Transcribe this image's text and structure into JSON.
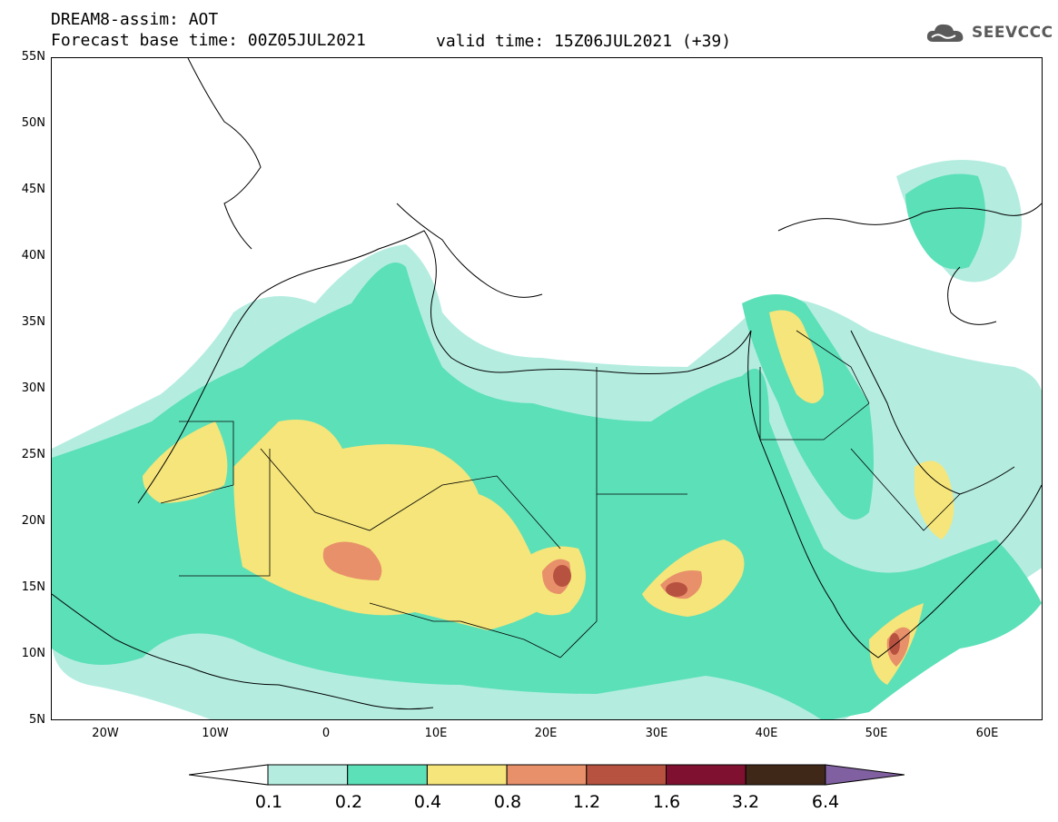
{
  "header": {
    "title": "DREAM8-assim: AOT",
    "base_time": "Forecast base time: 00Z05JUL2021",
    "valid_time": "valid time: 15Z06JUL2021 (+39)"
  },
  "logo": {
    "text": "SEEVCCC",
    "icon": "cloud-icon"
  },
  "map": {
    "lat_labels": [
      "55N",
      "50N",
      "45N",
      "40N",
      "35N",
      "30N",
      "25N",
      "20N",
      "15N",
      "10N",
      "5N"
    ],
    "lon_labels": [
      "20W",
      "10W",
      "0",
      "10E",
      "20E",
      "30E",
      "40E",
      "50E",
      "60E"
    ],
    "extent": {
      "lon": [
        -25,
        65
      ],
      "lat": [
        5,
        55
      ]
    },
    "background_color": "#ffffff",
    "border_color": "#000000"
  },
  "colorbar": {
    "levels": [
      "0.1",
      "0.2",
      "0.4",
      "0.8",
      "1.2",
      "1.6",
      "3.2",
      "6.4"
    ],
    "colors": [
      "#ffffff",
      "#b4ede0",
      "#5ce0b8",
      "#f5e57a",
      "#e8906a",
      "#b85240",
      "#801030",
      "#402818",
      "#8060a0"
    ]
  }
}
